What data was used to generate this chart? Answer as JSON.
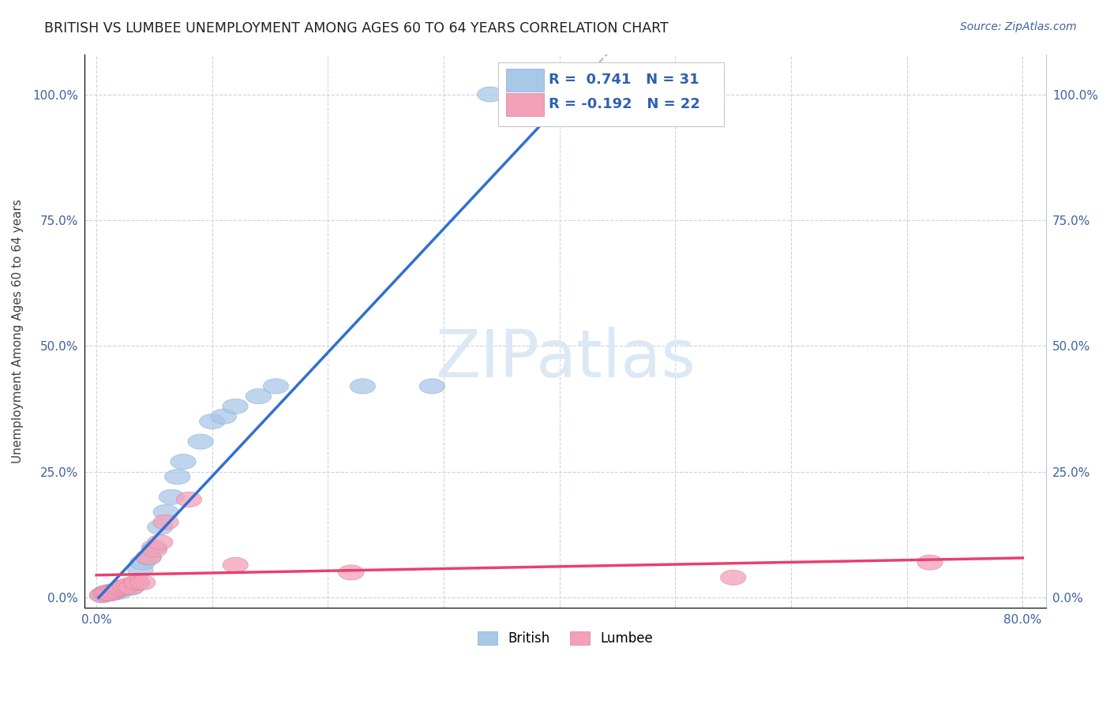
{
  "title": "BRITISH VS LUMBEE UNEMPLOYMENT AMONG AGES 60 TO 64 YEARS CORRELATION CHART",
  "source": "Source: ZipAtlas.com",
  "ylabel": "Unemployment Among Ages 60 to 64 years",
  "xlim": [
    -0.01,
    0.82
  ],
  "ylim": [
    -0.02,
    1.08
  ],
  "xticks": [
    0.0,
    0.1,
    0.2,
    0.3,
    0.4,
    0.5,
    0.6,
    0.7,
    0.8
  ],
  "xticklabels": [
    "0.0%",
    "",
    "",
    "",
    "",
    "",
    "",
    "",
    "80.0%"
  ],
  "yticks": [
    0.0,
    0.25,
    0.5,
    0.75,
    1.0
  ],
  "yticklabels": [
    "0.0%",
    "25.0%",
    "50.0%",
    "75.0%",
    "100.0%"
  ],
  "british_R": 0.741,
  "british_N": 31,
  "lumbee_R": -0.192,
  "lumbee_N": 22,
  "british_color": "#a8c8e8",
  "lumbee_color": "#f4a0b8",
  "british_line_color": "#3070d0",
  "lumbee_line_color": "#e84070",
  "british_points": [
    [
      0.005,
      0.005
    ],
    [
      0.008,
      0.01
    ],
    [
      0.01,
      0.008
    ],
    [
      0.012,
      0.012
    ],
    [
      0.015,
      0.01
    ],
    [
      0.018,
      0.015
    ],
    [
      0.02,
      0.012
    ],
    [
      0.022,
      0.018
    ],
    [
      0.025,
      0.02
    ],
    [
      0.028,
      0.022
    ],
    [
      0.03,
      0.02
    ],
    [
      0.032,
      0.025
    ],
    [
      0.035,
      0.03
    ],
    [
      0.038,
      0.055
    ],
    [
      0.04,
      0.07
    ],
    [
      0.045,
      0.08
    ],
    [
      0.05,
      0.1
    ],
    [
      0.055,
      0.14
    ],
    [
      0.06,
      0.17
    ],
    [
      0.065,
      0.2
    ],
    [
      0.07,
      0.24
    ],
    [
      0.075,
      0.27
    ],
    [
      0.09,
      0.31
    ],
    [
      0.1,
      0.35
    ],
    [
      0.11,
      0.36
    ],
    [
      0.12,
      0.38
    ],
    [
      0.14,
      0.4
    ],
    [
      0.155,
      0.42
    ],
    [
      0.23,
      0.42
    ],
    [
      0.29,
      0.42
    ],
    [
      0.34,
      1.0
    ]
  ],
  "lumbee_points": [
    [
      0.005,
      0.005
    ],
    [
      0.008,
      0.008
    ],
    [
      0.01,
      0.01
    ],
    [
      0.012,
      0.008
    ],
    [
      0.015,
      0.012
    ],
    [
      0.018,
      0.015
    ],
    [
      0.02,
      0.018
    ],
    [
      0.022,
      0.02
    ],
    [
      0.025,
      0.022
    ],
    [
      0.028,
      0.025
    ],
    [
      0.03,
      0.02
    ],
    [
      0.035,
      0.03
    ],
    [
      0.04,
      0.03
    ],
    [
      0.045,
      0.08
    ],
    [
      0.05,
      0.095
    ],
    [
      0.055,
      0.11
    ],
    [
      0.06,
      0.15
    ],
    [
      0.08,
      0.195
    ],
    [
      0.12,
      0.065
    ],
    [
      0.22,
      0.05
    ],
    [
      0.55,
      0.04
    ],
    [
      0.72,
      0.07
    ]
  ],
  "watermark": "ZIPatlas",
  "background_color": "#ffffff",
  "grid_color": "#c8d4e8",
  "title_fontsize": 12.5,
  "axis_label_fontsize": 11,
  "tick_fontsize": 11
}
